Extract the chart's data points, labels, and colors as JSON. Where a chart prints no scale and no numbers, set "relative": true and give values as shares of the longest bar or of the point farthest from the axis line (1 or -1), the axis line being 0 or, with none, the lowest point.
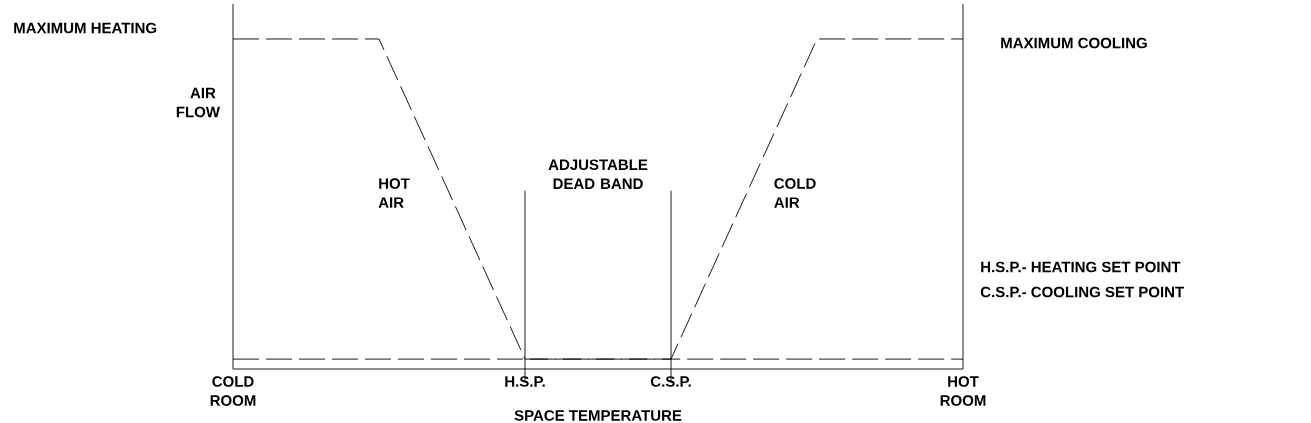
{
  "chart_data": {
    "type": "line",
    "relative": true,
    "xlabel": "SPACE TEMPERATURE",
    "ylabel": "AIR FLOW",
    "categories": [
      "COLD ROOM",
      null,
      "H.S.P.",
      "C.S.P.",
      null,
      "HOT ROOM"
    ],
    "series": [
      {
        "name": "HOT AIR",
        "color": "#000000",
        "values": [
          1,
          1,
          0.03,
          0.03,
          0.03,
          0.03
        ]
      },
      {
        "name": "COLD AIR",
        "color": "#000000",
        "values": [
          0.03,
          0.03,
          0.03,
          0.03,
          1,
          1
        ]
      }
    ],
    "ref_lines": [
      {
        "axis": "x",
        "value": "H.S.P."
      },
      {
        "axis": "x",
        "value": "C.S.P."
      }
    ],
    "annotations": [
      "MAXIMUM HEATING",
      "MAXIMUM COOLING",
      "ADJUSTABLE DEAD BAND",
      "H.S.P.- HEATING SET POINT",
      "C.S.P.- COOLING SET POINT"
    ],
    "line_style": "dashed",
    "marker": "none"
  }
}
